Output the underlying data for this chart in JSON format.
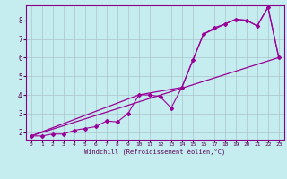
{
  "xlabel": "Windchill (Refroidissement éolien,°C)",
  "xlim": [
    -0.5,
    23.5
  ],
  "ylim": [
    1.6,
    8.8
  ],
  "xticks": [
    0,
    1,
    2,
    3,
    4,
    5,
    6,
    7,
    8,
    9,
    10,
    11,
    12,
    13,
    14,
    15,
    16,
    17,
    18,
    19,
    20,
    21,
    22,
    23
  ],
  "yticks": [
    2,
    3,
    4,
    5,
    6,
    7,
    8
  ],
  "bg_color": "#c5ecee",
  "grid_color": "#aac4cc",
  "line_color": "#990099",
  "line1_x": [
    0,
    1,
    2,
    3,
    4,
    5,
    6,
    7,
    8,
    9,
    10,
    11,
    12,
    13,
    14,
    15,
    16,
    17,
    18,
    19,
    20,
    21,
    22,
    23
  ],
  "line1_y": [
    1.8,
    1.8,
    1.9,
    1.9,
    2.1,
    2.2,
    2.3,
    2.6,
    2.55,
    3.0,
    4.0,
    4.0,
    3.9,
    3.3,
    4.4,
    5.85,
    7.25,
    7.6,
    7.8,
    8.05,
    8.0,
    7.7,
    8.7,
    6.0
  ],
  "line2_x": [
    0,
    23
  ],
  "line2_y": [
    1.8,
    6.0
  ],
  "line3_x": [
    0,
    10,
    14,
    16,
    18,
    19,
    20,
    21,
    22,
    23
  ],
  "line3_y": [
    1.8,
    4.0,
    4.4,
    7.25,
    7.8,
    8.05,
    8.0,
    7.7,
    8.7,
    6.0
  ]
}
